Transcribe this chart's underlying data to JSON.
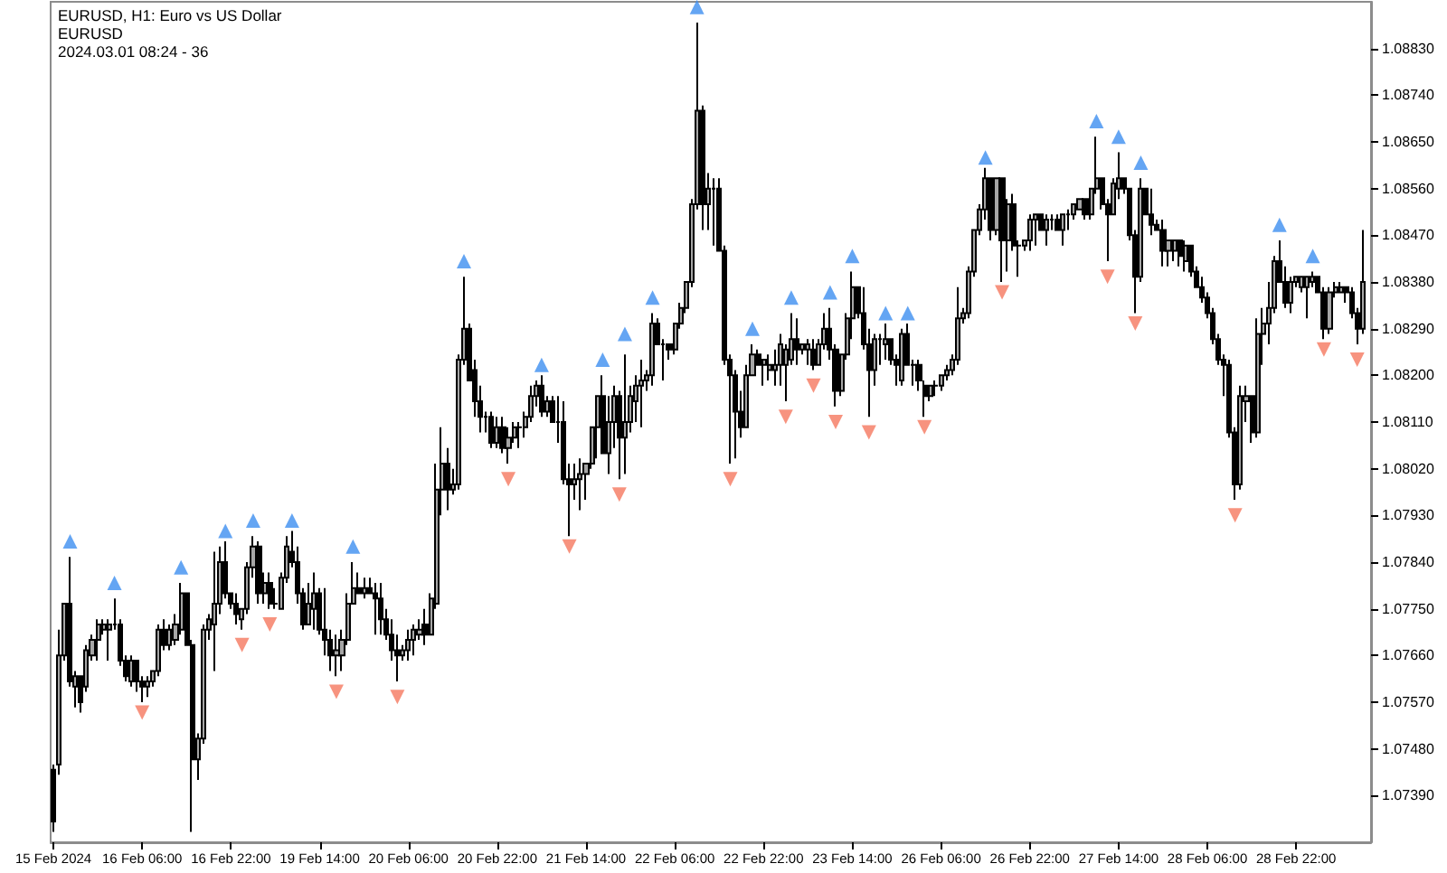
{
  "chart_data": {
    "type": "candlestick",
    "title": "EURUSD, H1: Euro vs US Dollar",
    "subtitle": "EURUSD",
    "annotations": [
      "2024.03.01 08:24 - 36"
    ],
    "categories": [
      "15 Feb 2024",
      null,
      null,
      null,
      null,
      null,
      null,
      null,
      null,
      null,
      null,
      null,
      null,
      null,
      null,
      null,
      "16 Feb 06:00",
      null,
      null,
      null,
      null,
      null,
      null,
      null,
      null,
      null,
      null,
      null,
      null,
      null,
      null,
      null,
      "16 Feb 22:00",
      null,
      null,
      null,
      null,
      null,
      null,
      null,
      null,
      null,
      null,
      null,
      null,
      null,
      null,
      null,
      "19 Feb 14:00",
      null,
      null,
      null,
      null,
      null,
      null,
      null,
      null,
      null,
      null,
      null,
      null,
      null,
      null,
      null,
      "20 Feb 06:00",
      null,
      null,
      null,
      null,
      null,
      null,
      null,
      null,
      null,
      null,
      null,
      null,
      null,
      null,
      null,
      "20 Feb 22:00",
      null,
      null,
      null,
      null,
      null,
      null,
      null,
      null,
      null,
      null,
      null,
      null,
      null,
      null,
      null,
      "21 Feb 14:00",
      null,
      null,
      null,
      null,
      null,
      null,
      null,
      null,
      null,
      null,
      null,
      null,
      null,
      null,
      null,
      "22 Feb 06:00",
      null,
      null,
      null,
      null,
      null,
      null,
      null,
      null,
      null,
      null,
      null,
      null,
      null,
      null,
      null,
      "22 Feb 22:00",
      null,
      null,
      null,
      null,
      null,
      null,
      null,
      null,
      null,
      null,
      null,
      null,
      null,
      null,
      null,
      "23 Feb 14:00",
      null,
      null,
      null,
      null,
      null,
      null,
      null,
      null,
      null,
      null,
      null,
      null,
      null,
      null,
      null,
      "26 Feb 06:00",
      null,
      null,
      null,
      null,
      null,
      null,
      null,
      null,
      null,
      null,
      null,
      null,
      null,
      null,
      null,
      "26 Feb 22:00",
      null,
      null,
      null,
      null,
      null,
      null,
      null,
      null,
      null,
      null,
      null,
      null,
      null,
      null,
      null,
      "27 Feb 14:00",
      null,
      null,
      null,
      null,
      null,
      null,
      null,
      null,
      null,
      null,
      null,
      null,
      null,
      null,
      null,
      "28 Feb 06:00",
      null,
      null,
      null,
      null,
      null,
      null,
      null,
      null,
      null,
      null,
      null,
      null,
      null,
      null,
      null,
      "28 Feb 22:00",
      null,
      null,
      null,
      null,
      null,
      null,
      null,
      null,
      null,
      null,
      null,
      null
    ],
    "color": "#000000",
    "ohlc": [
      [
        1.0744,
        1.0745,
        1.0732,
        1.0734
      ],
      [
        1.0745,
        1.0771,
        1.0743,
        1.0766
      ],
      [
        1.0766,
        1.0776,
        1.0765,
        1.0776
      ],
      [
        1.0776,
        1.0785,
        1.076,
        1.0761
      ],
      [
        1.076,
        1.0763,
        1.0756,
        1.0762
      ],
      [
        1.0762,
        1.0762,
        1.0755,
        1.0757
      ],
      [
        1.076,
        1.0768,
        1.0759,
        1.0767
      ],
      [
        1.0766,
        1.077,
        1.0765,
        1.0769
      ],
      [
        1.0769,
        1.0773,
        1.0765,
        1.0772
      ],
      [
        1.0771,
        1.0773,
        1.077,
        1.0772
      ],
      [
        1.0771,
        1.0773,
        1.0765,
        1.0772
      ],
      [
        1.0772,
        1.0777,
        1.0771,
        1.0772
      ],
      [
        1.0772,
        1.0773,
        1.0764,
        1.0765
      ],
      [
        1.0765,
        1.0766,
        1.0761,
        1.0762
      ],
      [
        1.0761,
        1.0766,
        1.076,
        1.0765
      ],
      [
        1.0765,
        1.0765,
        1.0759,
        1.0761
      ],
      [
        1.0761,
        1.0762,
        1.0757,
        1.076
      ],
      [
        1.076,
        1.0762,
        1.0758,
        1.0761
      ],
      [
        1.0761,
        1.0763,
        1.076,
        1.0763
      ],
      [
        1.0763,
        1.0772,
        1.0762,
        1.0771
      ],
      [
        1.0771,
        1.0773,
        1.0767,
        1.0768
      ],
      [
        1.0768,
        1.0772,
        1.0767,
        1.0771
      ],
      [
        1.0769,
        1.0774,
        1.0768,
        1.0772
      ],
      [
        1.0771,
        1.078,
        1.077,
        1.0778
      ],
      [
        1.0778,
        1.0778,
        1.0768,
        1.0768
      ],
      [
        1.0768,
        1.0769,
        1.0732,
        1.0746
      ],
      [
        1.0746,
        1.0751,
        1.0742,
        1.075
      ],
      [
        1.075,
        1.0772,
        1.0749,
        1.0771
      ],
      [
        1.0771,
        1.0774,
        1.0769,
        1.0773
      ],
      [
        1.0772,
        1.0786,
        1.0763,
        1.0776
      ],
      [
        1.0776,
        1.0787,
        1.0774,
        1.0784
      ],
      [
        1.0784,
        1.0788,
        1.0777,
        1.0778
      ],
      [
        1.0778,
        1.0778,
        1.0775,
        1.0776
      ],
      [
        1.0776,
        1.0778,
        1.0772,
        1.0774
      ],
      [
        1.0773,
        1.0775,
        1.0771,
        1.0775
      ],
      [
        1.0775,
        1.0784,
        1.0774,
        1.0783
      ],
      [
        1.0783,
        1.0789,
        1.0781,
        1.0787
      ],
      [
        1.0787,
        1.0788,
        1.0776,
        1.0778
      ],
      [
        1.0778,
        1.0782,
        1.0776,
        1.078
      ],
      [
        1.078,
        1.0782,
        1.0775,
        1.0776
      ],
      [
        1.0776,
        1.0779,
        1.0775,
        1.0776
      ],
      [
        1.0775,
        1.0782,
        1.0775,
        1.0781
      ],
      [
        1.0781,
        1.0789,
        1.078,
        1.0787
      ],
      [
        1.0786,
        1.079,
        1.0783,
        1.0784
      ],
      [
        1.0784,
        1.0787,
        1.0776,
        1.0778
      ],
      [
        1.0778,
        1.0779,
        1.0771,
        1.0772
      ],
      [
        1.0772,
        1.078,
        1.0772,
        1.0776
      ],
      [
        1.0775,
        1.0782,
        1.0771,
        1.0778
      ],
      [
        1.0778,
        1.0779,
        1.077,
        1.0771
      ],
      [
        1.0771,
        1.0779,
        1.0766,
        1.0769
      ],
      [
        1.0769,
        1.0771,
        1.0763,
        1.0766
      ],
      [
        1.0766,
        1.077,
        1.0762,
        1.0767
      ],
      [
        1.0766,
        1.0771,
        1.0763,
        1.0769
      ],
      [
        1.0769,
        1.0778,
        1.0768,
        1.0776
      ],
      [
        1.0776,
        1.0784,
        1.0776,
        1.0779
      ],
      [
        1.0779,
        1.0782,
        1.0778,
        1.0778
      ],
      [
        1.0778,
        1.0781,
        1.0777,
        1.0779
      ],
      [
        1.0779,
        1.0781,
        1.0778,
        1.0778
      ],
      [
        1.0778,
        1.078,
        1.077,
        1.0777
      ],
      [
        1.0777,
        1.078,
        1.077,
        1.0773
      ],
      [
        1.0773,
        1.0775,
        1.0769,
        1.077
      ],
      [
        1.077,
        1.0773,
        1.0765,
        1.0767
      ],
      [
        1.0767,
        1.077,
        1.0761,
        1.0766
      ],
      [
        1.0766,
        1.0768,
        1.0765,
        1.0767
      ],
      [
        1.0767,
        1.0771,
        1.0765,
        1.0769
      ],
      [
        1.0769,
        1.0772,
        1.0766,
        1.0771
      ],
      [
        1.077,
        1.0773,
        1.0769,
        1.0771
      ],
      [
        1.0772,
        1.0775,
        1.0768,
        1.077
      ],
      [
        1.077,
        1.0778,
        1.077,
        1.0777
      ],
      [
        1.0776,
        1.0803,
        1.0775,
        1.0798
      ],
      [
        1.0798,
        1.081,
        1.0793,
        1.0803
      ],
      [
        1.0803,
        1.0806,
        1.0794,
        1.0798
      ],
      [
        1.0798,
        1.0802,
        1.0797,
        1.0799
      ],
      [
        1.0799,
        1.0824,
        1.0798,
        1.0823
      ],
      [
        1.0823,
        1.0839,
        1.0822,
        1.0829
      ],
      [
        1.0829,
        1.083,
        1.0819,
        1.0819
      ],
      [
        1.0821,
        1.0823,
        1.0812,
        1.0815
      ],
      [
        1.0815,
        1.0818,
        1.0809,
        1.0812
      ],
      [
        1.0812,
        1.0813,
        1.0809,
        1.0812
      ],
      [
        1.0812,
        1.0813,
        1.0806,
        1.0807
      ],
      [
        1.0807,
        1.0812,
        1.0806,
        1.081
      ],
      [
        1.081,
        1.0812,
        1.0805,
        1.0806
      ],
      [
        1.0806,
        1.081,
        1.0803,
        1.0808
      ],
      [
        1.0808,
        1.0811,
        1.0807,
        1.081
      ],
      [
        1.081,
        1.0811,
        1.0806,
        1.081
      ],
      [
        1.081,
        1.0813,
        1.0808,
        1.0812
      ],
      [
        1.0812,
        1.0818,
        1.0811,
        1.0816
      ],
      [
        1.0816,
        1.0819,
        1.0814,
        1.0818
      ],
      [
        1.0818,
        1.082,
        1.0812,
        1.0813
      ],
      [
        1.0813,
        1.0816,
        1.0812,
        1.0815
      ],
      [
        1.0815,
        1.0816,
        1.0811,
        1.0811
      ],
      [
        1.0811,
        1.0816,
        1.0807,
        1.0811
      ],
      [
        1.0811,
        1.0815,
        1.0799,
        1.08
      ],
      [
        1.08,
        1.0803,
        1.0789,
        1.0799
      ],
      [
        1.0799,
        1.0803,
        1.0796,
        1.08
      ],
      [
        1.08,
        1.0804,
        1.0794,
        1.0801
      ],
      [
        1.0801,
        1.0803,
        1.0796,
        1.0803
      ],
      [
        1.0803,
        1.081,
        1.0802,
        1.081
      ],
      [
        1.081,
        1.0816,
        1.0804,
        1.0816
      ],
      [
        1.0816,
        1.082,
        1.0805,
        1.0805
      ],
      [
        1.0805,
        1.0816,
        1.0801,
        1.0811
      ],
      [
        1.0811,
        1.0818,
        1.0806,
        1.0816
      ],
      [
        1.0816,
        1.0817,
        1.08,
        1.0808
      ],
      [
        1.0808,
        1.0824,
        1.0801,
        1.0811
      ],
      [
        1.0811,
        1.0818,
        1.0809,
        1.0816
      ],
      [
        1.0815,
        1.082,
        1.0811,
        1.0818
      ],
      [
        1.0818,
        1.0823,
        1.081,
        1.0819
      ],
      [
        1.0819,
        1.0821,
        1.0817,
        1.082
      ],
      [
        1.082,
        1.0832,
        1.0818,
        1.083
      ],
      [
        1.083,
        1.0831,
        1.0826,
        1.0826
      ],
      [
        1.0826,
        1.0827,
        1.0819,
        1.0826
      ],
      [
        1.0826,
        1.0826,
        1.0823,
        1.0825
      ],
      [
        1.0825,
        1.083,
        1.0824,
        1.083
      ],
      [
        1.083,
        1.0834,
        1.0829,
        1.0833
      ],
      [
        1.0833,
        1.0838,
        1.0832,
        1.0838
      ],
      [
        1.0838,
        1.0854,
        1.0837,
        1.0853
      ],
      [
        1.0853,
        1.0888,
        1.0852,
        1.0871
      ],
      [
        1.0871,
        1.0872,
        1.0848,
        1.0853
      ],
      [
        1.0853,
        1.0859,
        1.0848,
        1.0856
      ],
      [
        1.0856,
        1.0858,
        1.0845,
        1.0856
      ],
      [
        1.0856,
        1.0858,
        1.0844,
        1.0844
      ],
      [
        1.0844,
        1.0845,
        1.0822,
        1.0823
      ],
      [
        1.0823,
        1.0824,
        1.0803,
        1.082
      ],
      [
        1.082,
        1.0821,
        1.0804,
        1.0813
      ],
      [
        1.0813,
        1.0817,
        1.0808,
        1.081
      ],
      [
        1.081,
        1.0822,
        1.081,
        1.082
      ],
      [
        1.082,
        1.0826,
        1.082,
        1.0824
      ],
      [
        1.0824,
        1.0825,
        1.0822,
        1.0822
      ],
      [
        1.0822,
        1.0823,
        1.0818,
        1.0823
      ],
      [
        1.0821,
        1.0824,
        1.0819,
        1.0822
      ],
      [
        1.0821,
        1.0825,
        1.0818,
        1.0822
      ],
      [
        1.0822,
        1.0828,
        1.0818,
        1.0826
      ],
      [
        1.0822,
        1.0826,
        1.0815,
        1.0825
      ],
      [
        1.0823,
        1.0832,
        1.0822,
        1.0827
      ],
      [
        1.0827,
        1.0831,
        1.0822,
        1.0825
      ],
      [
        1.0825,
        1.0826,
        1.0824,
        1.0826
      ],
      [
        1.0825,
        1.0827,
        1.0822,
        1.0826
      ],
      [
        1.0825,
        1.0827,
        1.0821,
        1.0822
      ],
      [
        1.0822,
        1.0827,
        1.0822,
        1.0826
      ],
      [
        1.0826,
        1.0832,
        1.0825,
        1.0829
      ],
      [
        1.0829,
        1.0833,
        1.0823,
        1.0825
      ],
      [
        1.0825,
        1.0826,
        1.0814,
        1.0817
      ],
      [
        1.0817,
        1.0824,
        1.0816,
        1.0824
      ],
      [
        1.0824,
        1.0832,
        1.0823,
        1.0831
      ],
      [
        1.0831,
        1.084,
        1.0827,
        1.0837
      ],
      [
        1.0837,
        1.0837,
        1.0831,
        1.0832
      ],
      [
        1.0832,
        1.0837,
        1.0825,
        1.0826
      ],
      [
        1.0826,
        1.0829,
        1.0812,
        1.0821
      ],
      [
        1.0821,
        1.0828,
        1.0818,
        1.0827
      ],
      [
        1.0827,
        1.0828,
        1.0822,
        1.0827
      ],
      [
        1.0826,
        1.083,
        1.0823,
        1.0827
      ],
      [
        1.0827,
        1.0827,
        1.0822,
        1.0823
      ],
      [
        1.0823,
        1.0824,
        1.0818,
        1.0822
      ],
      [
        1.0819,
        1.0829,
        1.0818,
        1.0828
      ],
      [
        1.0828,
        1.083,
        1.0822,
        1.0822
      ],
      [
        1.0822,
        1.0823,
        1.0818,
        1.0822
      ],
      [
        1.0822,
        1.0823,
        1.0817,
        1.0819
      ],
      [
        1.0818,
        1.0819,
        1.0812,
        1.0816
      ],
      [
        1.0816,
        1.0818,
        1.0815,
        1.0818
      ],
      [
        1.0818,
        1.0819,
        1.0816,
        1.0818
      ],
      [
        1.0818,
        1.082,
        1.0817,
        1.082
      ],
      [
        1.082,
        1.0822,
        1.0819,
        1.0821
      ],
      [
        1.0821,
        1.0824,
        1.082,
        1.0823
      ],
      [
        1.0823,
        1.0837,
        1.0822,
        1.0831
      ],
      [
        1.0831,
        1.0833,
        1.083,
        1.0832
      ],
      [
        1.0832,
        1.0841,
        1.0831,
        1.084
      ],
      [
        1.084,
        1.0848,
        1.0839,
        1.0848
      ],
      [
        1.0848,
        1.0853,
        1.0847,
        1.0852
      ],
      [
        1.0852,
        1.086,
        1.085,
        1.0858
      ],
      [
        1.0858,
        1.0858,
        1.0846,
        1.0848
      ],
      [
        1.0848,
        1.0858,
        1.0847,
        1.0858
      ],
      [
        1.0858,
        1.0858,
        1.0838,
        1.0846
      ],
      [
        1.0846,
        1.0854,
        1.084,
        1.0853
      ],
      [
        1.0853,
        1.0855,
        1.0844,
        1.0845
      ],
      [
        1.0845,
        1.0846,
        1.0839,
        1.0845
      ],
      [
        1.0845,
        1.0846,
        1.0844,
        1.0846
      ],
      [
        1.0846,
        1.0851,
        1.0844,
        1.085
      ],
      [
        1.085,
        1.0851,
        1.0845,
        1.0851
      ],
      [
        1.0851,
        1.0851,
        1.0848,
        1.0848
      ],
      [
        1.0848,
        1.0851,
        1.0845,
        1.085
      ],
      [
        1.085,
        1.0851,
        1.0848,
        1.085
      ],
      [
        1.085,
        1.0851,
        1.0848,
        1.0848
      ],
      [
        1.0848,
        1.0851,
        1.0845,
        1.0851
      ],
      [
        1.0851,
        1.0852,
        1.0848,
        1.0851
      ],
      [
        1.0851,
        1.0853,
        1.085,
        1.0853
      ],
      [
        1.0852,
        1.0854,
        1.0852,
        1.0854
      ],
      [
        1.0854,
        1.0854,
        1.085,
        1.0851
      ],
      [
        1.0851,
        1.0856,
        1.085,
        1.0856
      ],
      [
        1.0856,
        1.0866,
        1.0855,
        1.0858
      ],
      [
        1.0858,
        1.0858,
        1.0852,
        1.0853
      ],
      [
        1.0853,
        1.0854,
        1.0842,
        1.0851
      ],
      [
        1.0851,
        1.0858,
        1.0851,
        1.0857
      ],
      [
        1.0856,
        1.0863,
        1.0854,
        1.0858
      ],
      [
        1.0858,
        1.0858,
        1.0855,
        1.0856
      ],
      [
        1.0856,
        1.0856,
        1.0846,
        1.0847
      ],
      [
        1.0847,
        1.0848,
        1.0832,
        1.0839
      ],
      [
        1.0839,
        1.0858,
        1.0838,
        1.0856
      ],
      [
        1.0856,
        1.0856,
        1.0851,
        1.0851
      ],
      [
        1.0851,
        1.0856,
        1.0847,
        1.0849
      ],
      [
        1.0849,
        1.085,
        1.0848,
        1.0848
      ],
      [
        1.0848,
        1.085,
        1.0841,
        1.0844
      ],
      [
        1.0844,
        1.0846,
        1.0841,
        1.0846
      ],
      [
        1.0844,
        1.0846,
        1.0842,
        1.0846
      ],
      [
        1.0846,
        1.0846,
        1.0841,
        1.0843
      ],
      [
        1.0842,
        1.0846,
        1.084,
        1.0845
      ],
      [
        1.0845,
        1.0845,
        1.0839,
        1.084
      ],
      [
        1.084,
        1.0841,
        1.0837,
        1.0837
      ],
      [
        1.0837,
        1.0839,
        1.0834,
        1.0835
      ],
      [
        1.0835,
        1.0836,
        1.0831,
        1.0832
      ],
      [
        1.0832,
        1.0833,
        1.0826,
        1.0827
      ],
      [
        1.0827,
        1.0828,
        1.0822,
        1.0823
      ],
      [
        1.0823,
        1.0824,
        1.0816,
        1.0822
      ],
      [
        1.0822,
        1.0823,
        1.0808,
        1.0809
      ],
      [
        1.0809,
        1.081,
        1.0796,
        1.0799
      ],
      [
        1.0799,
        1.0818,
        1.0798,
        1.0816
      ],
      [
        1.0815,
        1.0818,
        1.0811,
        1.0816
      ],
      [
        1.0816,
        1.0816,
        1.0807,
        1.0809
      ],
      [
        1.0809,
        1.0831,
        1.0808,
        1.0828
      ],
      [
        1.0828,
        1.0833,
        1.0822,
        1.083
      ],
      [
        1.083,
        1.0838,
        1.0826,
        1.0833
      ],
      [
        1.0833,
        1.0843,
        1.0832,
        1.0842
      ],
      [
        1.0842,
        1.0846,
        1.0838,
        1.0838
      ],
      [
        1.0838,
        1.0841,
        1.0833,
        1.0834
      ],
      [
        1.0834,
        1.0839,
        1.0832,
        1.0838
      ],
      [
        1.0838,
        1.0839,
        1.0837,
        1.0839
      ],
      [
        1.0837,
        1.0839,
        1.0836,
        1.0839
      ],
      [
        1.0837,
        1.0839,
        1.0831,
        1.0839
      ],
      [
        1.0838,
        1.084,
        1.0837,
        1.0839
      ],
      [
        1.0839,
        1.0839,
        1.0836,
        1.0836
      ],
      [
        1.0836,
        1.0837,
        1.0827,
        1.0829
      ],
      [
        1.0829,
        1.0837,
        1.0828,
        1.0836
      ],
      [
        1.0836,
        1.0838,
        1.0835,
        1.0837
      ],
      [
        1.0836,
        1.0838,
        1.0836,
        1.0837
      ],
      [
        1.0837,
        1.0837,
        1.0834,
        1.0836
      ],
      [
        1.0836,
        1.0837,
        1.0831,
        1.0832
      ],
      [
        1.0832,
        1.0833,
        1.0826,
        1.0829
      ],
      [
        1.0829,
        1.0848,
        1.0828,
        1.0838
      ]
    ],
    "marker": "triangle",
    "series": [
      {
        "type": "scatter",
        "color": "#3d8ef0",
        "values": [
          null,
          null,
          null,
          1.0788,
          null,
          null,
          null,
          null,
          null,
          null,
          null,
          1.078,
          null,
          null,
          null,
          null,
          null,
          null,
          null,
          null,
          null,
          null,
          null,
          1.0783,
          null,
          null,
          null,
          null,
          null,
          null,
          null,
          1.079,
          null,
          null,
          null,
          null,
          1.0792,
          null,
          null,
          null,
          null,
          null,
          null,
          1.0792,
          null,
          null,
          null,
          null,
          null,
          null,
          null,
          null,
          null,
          null,
          1.0787,
          null,
          null,
          null,
          null,
          null,
          null,
          null,
          null,
          null,
          null,
          null,
          null,
          null,
          null,
          null,
          null,
          null,
          null,
          null,
          1.0842,
          null,
          null,
          null,
          null,
          null,
          null,
          null,
          null,
          null,
          null,
          null,
          null,
          null,
          1.0822,
          null,
          null,
          null,
          null,
          null,
          null,
          null,
          null,
          null,
          null,
          1.0823,
          null,
          null,
          null,
          1.0828,
          null,
          null,
          null,
          null,
          1.0835,
          null,
          null,
          null,
          null,
          null,
          null,
          null,
          1.0891,
          null,
          null,
          null,
          null,
          null,
          null,
          null,
          null,
          null,
          1.0829,
          null,
          null,
          null,
          null,
          null,
          null,
          1.0835,
          null,
          null,
          null,
          null,
          null,
          null,
          1.0836,
          null,
          null,
          null,
          1.0843,
          null,
          null,
          null,
          null,
          null,
          1.0832,
          null,
          null,
          null,
          1.0832,
          null,
          null,
          null,
          null,
          null,
          null,
          null,
          null,
          null,
          null,
          null,
          null,
          null,
          1.0862,
          null,
          null,
          null,
          null,
          null,
          null,
          null,
          null,
          null,
          null,
          null,
          null,
          null,
          null,
          null,
          null,
          null,
          null,
          null,
          1.0869,
          null,
          null,
          null,
          1.0866,
          null,
          null,
          null,
          1.0861,
          null,
          null,
          null,
          null,
          null,
          null,
          null,
          null,
          null,
          null,
          null,
          null,
          null,
          null,
          null,
          null,
          null,
          null,
          null,
          null,
          null,
          null,
          null,
          null,
          1.0849,
          null,
          null,
          null,
          null,
          null,
          1.0843,
          null,
          null,
          null,
          null,
          null,
          null,
          null,
          null,
          null
        ]
      },
      {
        "type": "scatter",
        "color": "#f5785f",
        "values": [
          null,
          null,
          null,
          null,
          null,
          null,
          null,
          null,
          null,
          null,
          null,
          null,
          null,
          null,
          null,
          null,
          1.0755,
          null,
          null,
          null,
          null,
          null,
          null,
          null,
          null,
          null,
          null,
          null,
          null,
          null,
          null,
          null,
          null,
          null,
          1.0768,
          null,
          null,
          null,
          null,
          1.0772,
          null,
          null,
          null,
          null,
          null,
          null,
          null,
          null,
          null,
          null,
          null,
          1.0759,
          null,
          null,
          null,
          null,
          null,
          null,
          null,
          null,
          null,
          null,
          1.0758,
          null,
          null,
          null,
          null,
          null,
          null,
          null,
          null,
          null,
          null,
          null,
          null,
          null,
          null,
          null,
          null,
          null,
          null,
          null,
          1.08,
          null,
          null,
          null,
          null,
          null,
          null,
          null,
          null,
          null,
          null,
          1.0787,
          null,
          null,
          null,
          null,
          null,
          null,
          null,
          null,
          1.0797,
          null,
          null,
          null,
          null,
          null,
          null,
          null,
          null,
          null,
          null,
          null,
          null,
          null,
          null,
          null,
          null,
          null,
          null,
          null,
          1.08,
          null,
          null,
          null,
          null,
          null,
          null,
          null,
          null,
          null,
          1.0812,
          null,
          null,
          null,
          null,
          1.0818,
          null,
          null,
          null,
          1.0811,
          null,
          null,
          null,
          null,
          null,
          1.0809,
          null,
          null,
          null,
          null,
          null,
          null,
          null,
          null,
          null,
          1.081,
          null,
          null,
          null,
          null,
          null,
          null,
          null,
          null,
          null,
          null,
          null,
          null,
          null,
          1.0836,
          null,
          null,
          null,
          null,
          null,
          null,
          null,
          null,
          null,
          null,
          null,
          null,
          null,
          null,
          null,
          null,
          null,
          null,
          1.0839,
          null,
          null,
          null,
          null,
          1.083,
          null,
          null,
          null,
          null,
          null,
          null,
          null,
          null,
          null,
          null,
          null,
          null,
          null,
          null,
          null,
          null,
          null,
          1.0793,
          null,
          null,
          null,
          null,
          null,
          null,
          null,
          null,
          null,
          null,
          null,
          null,
          null,
          null,
          null,
          1.0825,
          null,
          null,
          null,
          null,
          null,
          1.0823,
          null
        ]
      }
    ],
    "ylim": [
      1.073,
      1.0892
    ],
    "yticks": [
      {
        "value": 1.0739,
        "label": "1.07390"
      },
      {
        "value": 1.0748,
        "label": "1.07480"
      },
      {
        "value": 1.0757,
        "label": "1.07570"
      },
      {
        "value": 1.0766,
        "label": "1.07660"
      },
      {
        "value": 1.0775,
        "label": "1.07750"
      },
      {
        "value": 1.0784,
        "label": "1.07840"
      },
      {
        "value": 1.0793,
        "label": "1.07930"
      },
      {
        "value": 1.0802,
        "label": "1.08020"
      },
      {
        "value": 1.0811,
        "label": "1.08110"
      },
      {
        "value": 1.082,
        "label": "1.08200"
      },
      {
        "value": 1.0829,
        "label": "1.08290"
      },
      {
        "value": 1.0838,
        "label": "1.08380"
      },
      {
        "value": 1.0847,
        "label": "1.08470"
      },
      {
        "value": 1.0856,
        "label": "1.08560"
      },
      {
        "value": 1.0865,
        "label": "1.08650"
      },
      {
        "value": 1.0874,
        "label": "1.08740"
      },
      {
        "value": 1.0883,
        "label": "1.08830"
      }
    ]
  }
}
